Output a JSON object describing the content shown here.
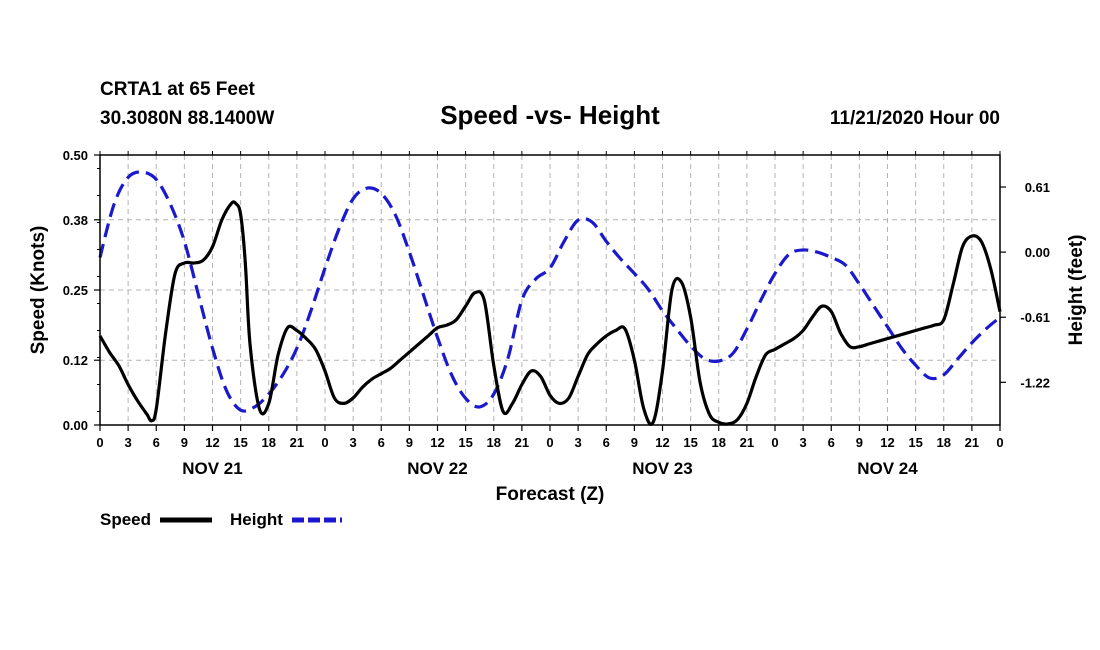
{
  "header": {
    "station": "CRTA1 at 65 Feet",
    "coords": "30.3080N 88.1400W",
    "title": "Speed -vs- Height",
    "issued": "11/21/2020 Hour 00"
  },
  "chart_data": {
    "type": "line",
    "title": "Speed -vs- Height",
    "xlabel": "Forecast (Z)",
    "ylabel_left": "Speed (Knots)",
    "ylabel_right": "Height (feet)",
    "x_units": "hours from 11/21/2020 00Z",
    "xlim": [
      0,
      96
    ],
    "x_ticks": [
      0,
      3,
      6,
      9,
      12,
      15,
      18,
      21,
      24,
      27,
      30,
      33,
      36,
      39,
      42,
      45,
      48,
      51,
      54,
      57,
      60,
      63,
      66,
      69,
      72,
      75,
      78,
      81,
      84,
      87,
      90,
      93,
      96
    ],
    "x_tick_labels": [
      "0",
      "3",
      "6",
      "9",
      "12",
      "15",
      "18",
      "21",
      "0",
      "3",
      "6",
      "9",
      "12",
      "15",
      "18",
      "21",
      "0",
      "3",
      "6",
      "9",
      "12",
      "15",
      "18",
      "21",
      "0",
      "3",
      "6",
      "9",
      "12",
      "15",
      "18",
      "21",
      "0"
    ],
    "date_labels": [
      {
        "label": "NOV 21",
        "hour": 12
      },
      {
        "label": "NOV 22",
        "hour": 36
      },
      {
        "label": "NOV 23",
        "hour": 60
      },
      {
        "label": "NOV 24",
        "hour": 84
      }
    ],
    "ylim_left": [
      0,
      0.5
    ],
    "y_ticks_left": [
      0.0,
      0.12,
      0.25,
      0.38,
      0.5
    ],
    "y_tick_labels_left": [
      "0.00",
      "0.12",
      "0.25",
      "0.38",
      "0.50"
    ],
    "ylim_right": [
      -1.62,
      0.91
    ],
    "y_ticks_right": [
      -1.22,
      -0.61,
      0.0,
      0.61
    ],
    "y_tick_labels_right": [
      "-1.22",
      "-0.61",
      "0.00",
      "0.61"
    ],
    "grid": true,
    "legend_position": "bottom-left",
    "series": [
      {
        "name": "Speed",
        "axis": "left",
        "color": "#000000",
        "dash": "solid",
        "x": [
          0,
          1,
          2,
          3,
          4,
          5,
          5.5,
          6,
          7,
          8,
          9,
          10,
          11,
          12,
          13,
          14,
          14.5,
          15,
          15.5,
          16,
          17,
          18,
          19,
          20,
          21,
          22,
          23,
          24,
          25,
          26,
          27,
          28,
          29,
          30,
          31,
          32,
          33,
          34,
          35,
          36,
          37,
          38,
          39,
          40,
          41,
          42,
          43,
          44,
          45,
          46,
          47,
          48,
          49,
          50,
          51,
          52,
          53,
          54,
          55,
          56,
          57,
          58,
          59,
          60,
          61,
          62,
          63,
          64,
          65,
          66,
          67,
          68,
          69,
          70,
          71,
          72,
          73,
          74,
          75,
          76,
          77,
          78,
          79,
          80,
          81,
          82,
          83,
          84,
          85,
          86,
          87,
          88,
          89,
          90,
          91,
          92,
          93,
          94,
          95,
          96
        ],
        "y": [
          0.165,
          0.135,
          0.11,
          0.075,
          0.045,
          0.02,
          0.008,
          0.03,
          0.17,
          0.28,
          0.3,
          0.3,
          0.305,
          0.33,
          0.38,
          0.41,
          0.41,
          0.39,
          0.3,
          0.15,
          0.03,
          0.04,
          0.13,
          0.18,
          0.175,
          0.16,
          0.14,
          0.1,
          0.05,
          0.04,
          0.05,
          0.07,
          0.085,
          0.095,
          0.105,
          0.12,
          0.135,
          0.15,
          0.165,
          0.18,
          0.185,
          0.195,
          0.22,
          0.245,
          0.23,
          0.11,
          0.025,
          0.04,
          0.075,
          0.1,
          0.09,
          0.055,
          0.04,
          0.05,
          0.09,
          0.13,
          0.15,
          0.165,
          0.175,
          0.178,
          0.12,
          0.03,
          0.005,
          0.1,
          0.25,
          0.265,
          0.2,
          0.08,
          0.02,
          0.005,
          0.002,
          0.01,
          0.04,
          0.09,
          0.13,
          0.14,
          0.15,
          0.16,
          0.175,
          0.2,
          0.22,
          0.21,
          0.17,
          0.145,
          0.145,
          0.15,
          0.155,
          0.16,
          0.165,
          0.17,
          0.175,
          0.18,
          0.185,
          0.195,
          0.26,
          0.33,
          0.35,
          0.34,
          0.29,
          0.21
        ]
      },
      {
        "name": "Height",
        "axis": "right",
        "color": "#1a1acc",
        "dash": "dashed",
        "x": [
          0,
          1.5,
          3,
          4.5,
          6,
          7.5,
          9,
          10.5,
          12,
          13.5,
          15,
          16.5,
          18,
          19.5,
          21,
          22.5,
          24,
          25.5,
          27,
          28.5,
          30,
          31.5,
          33,
          34.5,
          36,
          37.5,
          39,
          40.5,
          42,
          43.5,
          45,
          46.5,
          48,
          49.5,
          51,
          52.5,
          54,
          55.5,
          57,
          58.5,
          60,
          61.5,
          63,
          64.5,
          66,
          67.5,
          69,
          70.5,
          72,
          73.5,
          75,
          76.5,
          78,
          79.5,
          81,
          82.5,
          84,
          85.5,
          87,
          88.5,
          90,
          91.5,
          93,
          94.5,
          96
        ],
        "y": [
          -0.05,
          0.45,
          0.7,
          0.75,
          0.68,
          0.45,
          0.1,
          -0.4,
          -0.9,
          -1.3,
          -1.48,
          -1.45,
          -1.33,
          -1.15,
          -0.9,
          -0.55,
          -0.15,
          0.22,
          0.5,
          0.6,
          0.55,
          0.35,
          0.0,
          -0.4,
          -0.8,
          -1.15,
          -1.37,
          -1.45,
          -1.33,
          -1.0,
          -0.45,
          -0.25,
          -0.15,
          0.1,
          0.3,
          0.28,
          0.1,
          -0.06,
          -0.2,
          -0.35,
          -0.55,
          -0.72,
          -0.88,
          -1.0,
          -1.02,
          -0.95,
          -0.72,
          -0.45,
          -0.2,
          -0.02,
          0.02,
          0.0,
          -0.05,
          -0.12,
          -0.3,
          -0.5,
          -0.7,
          -0.9,
          -1.06,
          -1.18,
          -1.15,
          -1.0,
          -0.85,
          -0.72,
          -0.61
        ]
      }
    ]
  },
  "legend": {
    "items": [
      {
        "label": "Speed",
        "color": "#000000",
        "dash": "solid"
      },
      {
        "label": "Height",
        "color": "#1a1acc",
        "dash": "dashed"
      }
    ]
  }
}
